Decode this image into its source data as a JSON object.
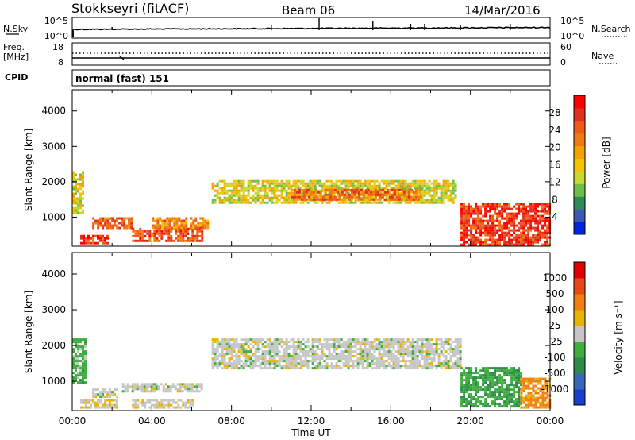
{
  "header": {
    "station": "Stokkseyri (fitACF)",
    "beam": "Beam 06",
    "date": "14/Mar/2016"
  },
  "nsky_panel": {
    "left_label": "N.Sky",
    "right_label": "N.Search",
    "left_ticks": [
      "10^5",
      "10^0"
    ],
    "right_ticks": [
      "10^5",
      "10^0"
    ]
  },
  "freq_panel": {
    "left_label_line1": "Freq.",
    "left_label_line2": "[MHz]",
    "left_ticks": [
      "18",
      "8"
    ],
    "right_label": "Nave",
    "right_ticks": [
      "60",
      "0"
    ]
  },
  "cpid": {
    "label": "CPID",
    "value": "normal (fast) 151"
  },
  "power_panel": {
    "ylabel": "Slant Range [km]",
    "yticks": [
      "4000",
      "3000",
      "2000",
      "1000"
    ],
    "colorbar_label": "Power [dB]",
    "colorbar_ticks": [
      "28",
      "24",
      "20",
      "16",
      "12",
      "8",
      "4"
    ],
    "colors": [
      "#0022dd",
      "#3d57b4",
      "#2e8b57",
      "#6cc04a",
      "#c8d82c",
      "#f5c400",
      "#f5a300",
      "#f07a10",
      "#ef5a18",
      "#e03020",
      "#ff0000"
    ]
  },
  "velocity_panel": {
    "ylabel": "Slant Range [km]",
    "yticks": [
      "4000",
      "3000",
      "2000",
      "1000"
    ],
    "colorbar_label": "Velocity [m s⁻¹]",
    "colorbar_ticks": [
      "1000",
      "500",
      "100",
      "25",
      "-25",
      "-100",
      "-500",
      "-1000"
    ],
    "colors": [
      "#1a3fcf",
      "#3a66b8",
      "#2e8a4a",
      "#3fae3f",
      "#c6c6c6",
      "#e8b400",
      "#f07f10",
      "#e84818",
      "#e00000"
    ]
  },
  "xaxis": {
    "label": "Time UT",
    "ticks": [
      "00:00",
      "04:00",
      "08:00",
      "12:00",
      "16:00",
      "20:00",
      "00:00"
    ]
  },
  "chart_data": [
    {
      "type": "heatmap",
      "title": "Power [dB]",
      "xlabel": "Time UT",
      "ylabel": "Slant Range [km]",
      "xlim": [
        0,
        24
      ],
      "ylim": [
        180,
        4600
      ],
      "clim": [
        0,
        30
      ],
      "regions": [
        {
          "x": [
            0.0,
            0.5
          ],
          "y": [
            1100,
            2300
          ],
          "value": 14
        },
        {
          "x": [
            0.4,
            1.8
          ],
          "y": [
            280,
            500
          ],
          "value": 26
        },
        {
          "x": [
            1.0,
            3.0
          ],
          "y": [
            700,
            1000
          ],
          "value": 22
        },
        {
          "x": [
            3.0,
            6.5
          ],
          "y": [
            350,
            700
          ],
          "value": 24
        },
        {
          "x": [
            4.0,
            6.8
          ],
          "y": [
            700,
            1000
          ],
          "value": 20
        },
        {
          "x": [
            7.0,
            19.2
          ],
          "y": [
            1400,
            2050
          ],
          "value": 14
        },
        {
          "x": [
            11.0,
            17.5
          ],
          "y": [
            1500,
            1800
          ],
          "value": 22
        },
        {
          "x": [
            19.5,
            24.0
          ],
          "y": [
            250,
            1400
          ],
          "value": 26
        }
      ]
    },
    {
      "type": "heatmap",
      "title": "Velocity [m s⁻¹]",
      "xlabel": "Time UT",
      "ylabel": "Slant Range [km]",
      "xlim": [
        0,
        24
      ],
      "ylim": [
        180,
        4600
      ],
      "clim": [
        -1000,
        1000
      ],
      "regions": [
        {
          "x": [
            0.0,
            0.6
          ],
          "y": [
            1000,
            2200
          ],
          "value": -200
        },
        {
          "x": [
            0.4,
            2.2
          ],
          "y": [
            300,
            500
          ],
          "value": 100
        },
        {
          "x": [
            1.0,
            2.2
          ],
          "y": [
            600,
            800
          ],
          "value": 0
        },
        {
          "x": [
            2.5,
            6.5
          ],
          "y": [
            700,
            950
          ],
          "value": 0
        },
        {
          "x": [
            3.0,
            6.0
          ],
          "y": [
            300,
            500
          ],
          "value": 60
        },
        {
          "x": [
            7.0,
            19.5
          ],
          "y": [
            1400,
            2200
          ],
          "value": 0
        },
        {
          "x": [
            19.5,
            22.5
          ],
          "y": [
            300,
            1400
          ],
          "value": -300
        },
        {
          "x": [
            22.5,
            24.0
          ],
          "y": [
            300,
            1100
          ],
          "value": 400
        }
      ]
    }
  ]
}
